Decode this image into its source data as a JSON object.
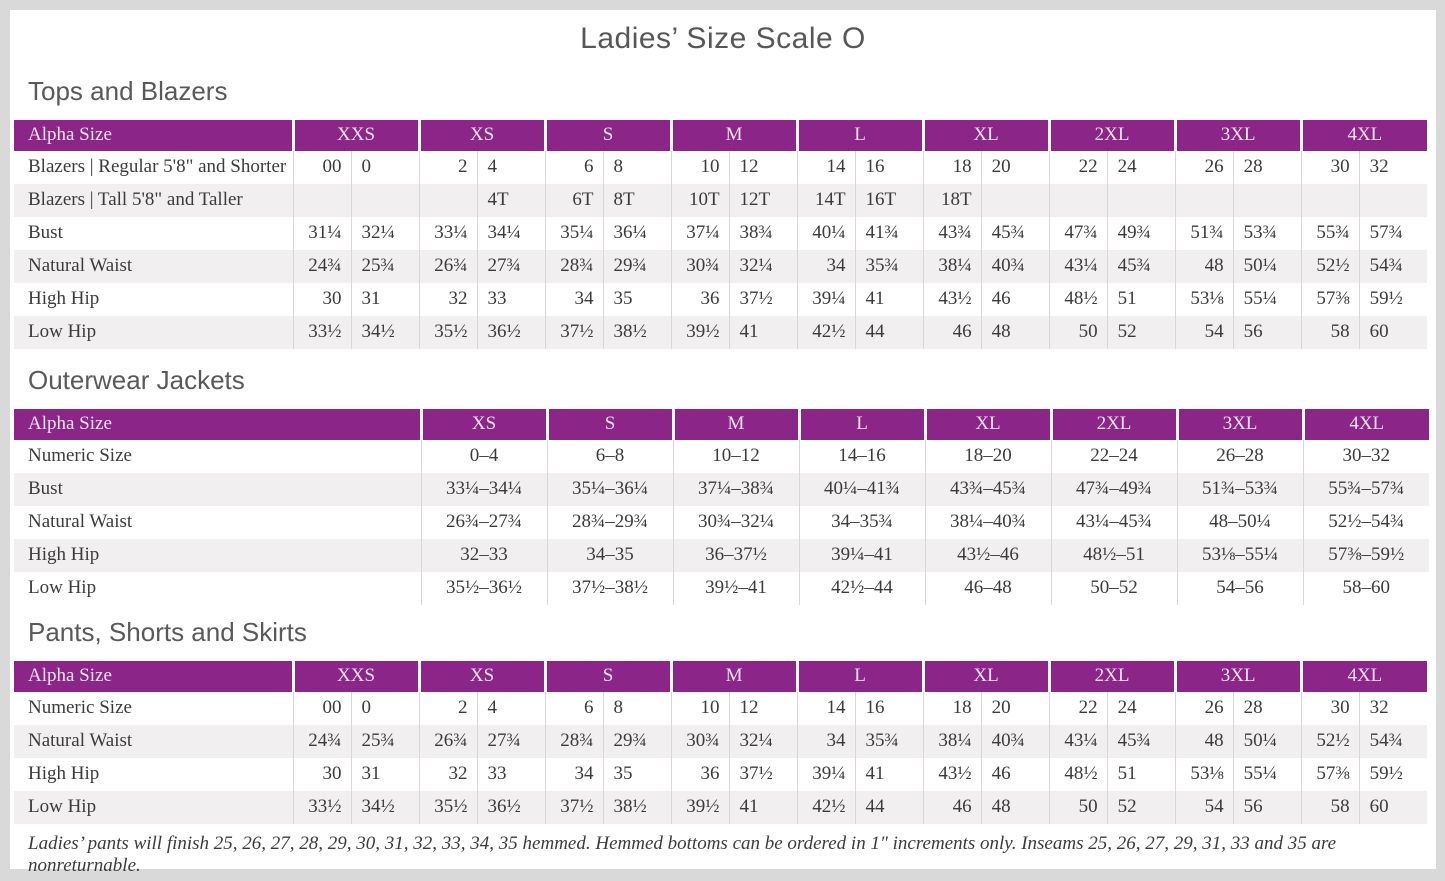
{
  "shared": {
    "title": "Ladies’ Size Scale O",
    "column_header_label": "Alpha Size",
    "footnote": "Ladies’ pants will finish 25, 26, 27, 28, 29, 30, 31, 32, 33, 34, 35 hemmed. Hemmed bottoms can be ordered in 1″ increments only. Inseams 25, 26, 27, 29, 31, 33 and 35 are nonreturnable.",
    "colors": {
      "accent_purple": "#8c2588",
      "header_text": "#f2e5f1",
      "row_alt_gray": "#f1efef",
      "page_border_gray": "#d9d9d9",
      "heading_gray": "#595959",
      "body_text": "#3b3b3b"
    }
  },
  "tables": [
    {
      "section_title": "Tops and Blazers",
      "type": "paired",
      "sizes": [
        "XXS",
        "XS",
        "S",
        "M",
        "L",
        "XL",
        "2XL",
        "3XL",
        "4XL"
      ],
      "rows": [
        {
          "label": "Blazers  |  Regular 5'8\" and Shorter",
          "values": [
            [
              "00",
              "0"
            ],
            [
              "2",
              "4"
            ],
            [
              "6",
              "8"
            ],
            [
              "10",
              "12"
            ],
            [
              "14",
              "16"
            ],
            [
              "18",
              "20"
            ],
            [
              "22",
              "24"
            ],
            [
              "26",
              "28"
            ],
            [
              "30",
              "32"
            ]
          ]
        },
        {
          "label": "Blazers  |  Tall 5'8\" and Taller",
          "values": [
            [
              "",
              ""
            ],
            [
              "",
              "4T"
            ],
            [
              "6T",
              "8T"
            ],
            [
              "10T",
              "12T"
            ],
            [
              "14T",
              "16T"
            ],
            [
              "18T",
              ""
            ],
            [
              "",
              ""
            ],
            [
              "",
              ""
            ],
            [
              "",
              ""
            ]
          ]
        },
        {
          "label": "Bust",
          "values": [
            [
              "31¼",
              "32¼"
            ],
            [
              "33¼",
              "34¼"
            ],
            [
              "35¼",
              "36¼"
            ],
            [
              "37¼",
              "38¾"
            ],
            [
              "40¼",
              "41¾"
            ],
            [
              "43¾",
              "45¾"
            ],
            [
              "47¾",
              "49¾"
            ],
            [
              "51¾",
              "53¾"
            ],
            [
              "55¾",
              "57¾"
            ]
          ]
        },
        {
          "label": "Natural Waist",
          "values": [
            [
              "24¾",
              "25¾"
            ],
            [
              "26¾",
              "27¾"
            ],
            [
              "28¾",
              "29¾"
            ],
            [
              "30¾",
              "32¼"
            ],
            [
              "34",
              "35¾"
            ],
            [
              "38¼",
              "40¾"
            ],
            [
              "43¼",
              "45¾"
            ],
            [
              "48",
              "50¼"
            ],
            [
              "52½",
              "54¾"
            ]
          ]
        },
        {
          "label": "High Hip",
          "values": [
            [
              "30",
              "31"
            ],
            [
              "32",
              "33"
            ],
            [
              "34",
              "35"
            ],
            [
              "36",
              "37½"
            ],
            [
              "39¼",
              "41"
            ],
            [
              "43½",
              "46"
            ],
            [
              "48½",
              "51"
            ],
            [
              "53⅛",
              "55¼"
            ],
            [
              "57⅜",
              "59½"
            ]
          ]
        },
        {
          "label": "Low Hip",
          "values": [
            [
              "33½",
              "34½"
            ],
            [
              "35½",
              "36½"
            ],
            [
              "37½",
              "38½"
            ],
            [
              "39½",
              "41"
            ],
            [
              "42½",
              "44"
            ],
            [
              "46",
              "48"
            ],
            [
              "50",
              "52"
            ],
            [
              "54",
              "56"
            ],
            [
              "58",
              "60"
            ]
          ]
        }
      ]
    },
    {
      "section_title": "Outerwear Jackets",
      "type": "range",
      "sizes": [
        "XS",
        "S",
        "M",
        "L",
        "XL",
        "2XL",
        "3XL",
        "4XL"
      ],
      "rows": [
        {
          "label": "Numeric Size",
          "values": [
            "0–4",
            "6–8",
            "10–12",
            "14–16",
            "18–20",
            "22–24",
            "26–28",
            "30–32"
          ]
        },
        {
          "label": "Bust",
          "values": [
            "33¼–34¼",
            "35¼–36¼",
            "37¼–38¾",
            "40¼–41¾",
            "43¾–45¾",
            "47¾–49¾",
            "51¾–53¾",
            "55¾–57¾"
          ]
        },
        {
          "label": "Natural Waist",
          "values": [
            "26¾–27¾",
            "28¾–29¾",
            "30¾–32¼",
            "34–35¾",
            "38¼–40¾",
            "43¼–45¾",
            "48–50¼",
            "52½–54¾"
          ]
        },
        {
          "label": "High Hip",
          "values": [
            "32–33",
            "34–35",
            "36–37½",
            "39¼–41",
            "43½–46",
            "48½–51",
            "53⅛–55¼",
            "57⅜–59½"
          ]
        },
        {
          "label": "Low Hip",
          "values": [
            "35½–36½",
            "37½–38½",
            "39½–41",
            "42½–44",
            "46–48",
            "50–52",
            "54–56",
            "58–60"
          ]
        }
      ]
    },
    {
      "section_title": "Pants, Shorts and Skirts",
      "type": "paired",
      "sizes": [
        "XXS",
        "XS",
        "S",
        "M",
        "L",
        "XL",
        "2XL",
        "3XL",
        "4XL"
      ],
      "rows": [
        {
          "label": "Numeric Size",
          "values": [
            [
              "00",
              "0"
            ],
            [
              "2",
              "4"
            ],
            [
              "6",
              "8"
            ],
            [
              "10",
              "12"
            ],
            [
              "14",
              "16"
            ],
            [
              "18",
              "20"
            ],
            [
              "22",
              "24"
            ],
            [
              "26",
              "28"
            ],
            [
              "30",
              "32"
            ]
          ]
        },
        {
          "label": "Natural Waist",
          "values": [
            [
              "24¾",
              "25¾"
            ],
            [
              "26¾",
              "27¾"
            ],
            [
              "28¾",
              "29¾"
            ],
            [
              "30¾",
              "32¼"
            ],
            [
              "34",
              "35¾"
            ],
            [
              "38¼",
              "40¾"
            ],
            [
              "43¼",
              "45¾"
            ],
            [
              "48",
              "50¼"
            ],
            [
              "52½",
              "54¾"
            ]
          ]
        },
        {
          "label": "High Hip",
          "values": [
            [
              "30",
              "31"
            ],
            [
              "32",
              "33"
            ],
            [
              "34",
              "35"
            ],
            [
              "36",
              "37½"
            ],
            [
              "39¼",
              "41"
            ],
            [
              "43½",
              "46"
            ],
            [
              "48½",
              "51"
            ],
            [
              "53⅛",
              "55¼"
            ],
            [
              "57⅜",
              "59½"
            ]
          ]
        },
        {
          "label": "Low Hip",
          "values": [
            [
              "33½",
              "34½"
            ],
            [
              "35½",
              "36½"
            ],
            [
              "37½",
              "38½"
            ],
            [
              "39½",
              "41"
            ],
            [
              "42½",
              "44"
            ],
            [
              "46",
              "48"
            ],
            [
              "50",
              "52"
            ],
            [
              "54",
              "56"
            ],
            [
              "58",
              "60"
            ]
          ]
        }
      ]
    }
  ]
}
